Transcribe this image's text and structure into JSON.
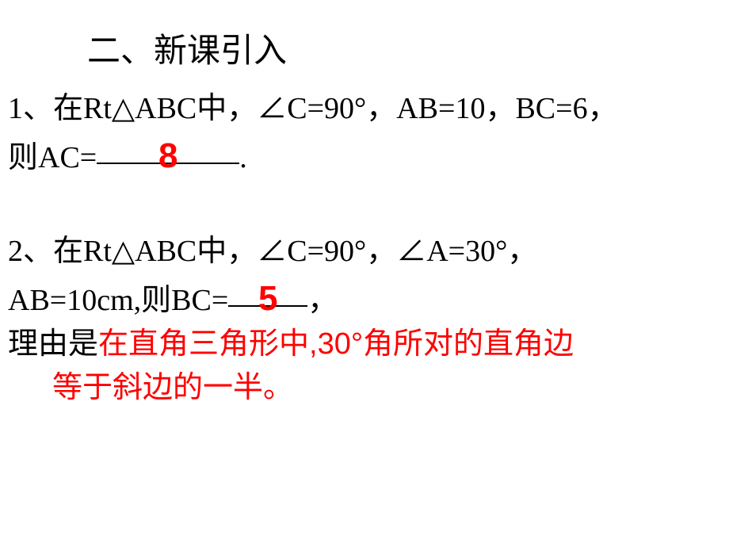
{
  "title": "二、新课引入",
  "q1": {
    "line1": "1、在Rt△ABC中，∠C=90°，AB=10，BC=6，",
    "line2_prefix": "则AC=",
    "answer": "8",
    "line2_suffix": "."
  },
  "q2": {
    "line1": "2、在Rt△ABC中，∠C=90°，∠A=30°，",
    "line2_prefix": "AB=10cm,则BC=",
    "answer": "5",
    "line2_suffix": "，",
    "line3_prefix": "理由是",
    "reason_part1": "在直角三角形中,30°角所对的直角边",
    "reason_part2": "等于斜边的一半。"
  },
  "colors": {
    "text": "#000000",
    "answer": "#ff0000",
    "background": "#ffffff"
  },
  "fonts": {
    "title_family": "KaiTi",
    "body_family": "SimSun",
    "answer_family": "Arial Black",
    "reason_family": "SimHei",
    "title_size_pt": 32,
    "body_size_pt": 28,
    "answer_size_pt": 33
  }
}
